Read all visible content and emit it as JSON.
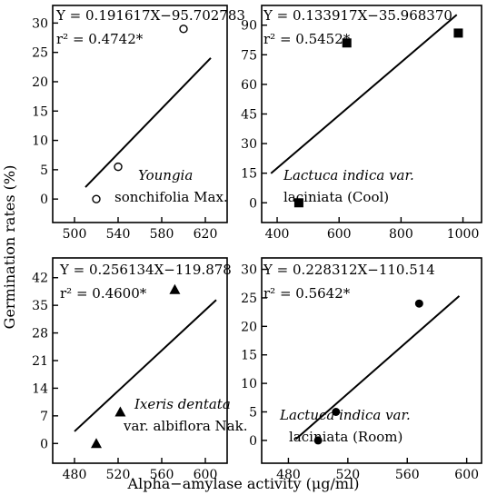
{
  "figure": {
    "ylabel": "Germination rates (%)",
    "xlabel": "Alpha−amylase activity (μg/ml)"
  },
  "chart_data": [
    {
      "type": "scatter",
      "marker": "circle-open",
      "equation": "Y = 0.191617X−95.702783",
      "r2": "r² = 0.4742*",
      "species_line1": "Youngia",
      "species_line2": "sonchifolia Max.",
      "xlim": [
        480,
        640
      ],
      "ylim": [
        -4,
        33
      ],
      "xticks": [
        500,
        540,
        580,
        620
      ],
      "yticks": [
        0,
        5,
        10,
        15,
        20,
        25,
        30
      ],
      "points": [
        [
          520,
          0
        ],
        [
          540,
          5.5
        ],
        [
          600,
          29
        ]
      ],
      "fit": {
        "slope": 0.191617,
        "intercept": -95.702783,
        "x_from": 510,
        "x_to": 625
      }
    },
    {
      "type": "scatter",
      "marker": "square-filled",
      "equation": "Y = 0.133917X−35.968370",
      "r2": "r² = 0.5452*",
      "species_line1": "Lactuca indica var.",
      "species_line2": "laciniata (Cool)",
      "xlim": [
        350,
        1060
      ],
      "ylim": [
        -10,
        100
      ],
      "xticks": [
        400,
        600,
        800,
        1000
      ],
      "yticks": [
        0,
        15,
        30,
        45,
        60,
        75,
        90
      ],
      "points": [
        [
          470,
          0
        ],
        [
          625,
          81
        ],
        [
          985,
          86
        ]
      ],
      "fit": {
        "slope": 0.133917,
        "intercept": -35.96837,
        "x_from": 380,
        "x_to": 980
      }
    },
    {
      "type": "scatter",
      "marker": "triangle-filled",
      "equation": "Y = 0.256134X−119.878",
      "r2": "r² = 0.4600*",
      "species_line1": "Ixeris dentata",
      "species_line2": "var. albiflora Nak.",
      "xlim": [
        460,
        620
      ],
      "ylim": [
        -5,
        47
      ],
      "xticks": [
        480,
        520,
        560,
        600
      ],
      "yticks": [
        0,
        7,
        14,
        21,
        28,
        35,
        42
      ],
      "points": [
        [
          500,
          0
        ],
        [
          522,
          8
        ],
        [
          572,
          39
        ]
      ],
      "fit": {
        "slope": 0.256134,
        "intercept": -119.878,
        "x_from": 480,
        "x_to": 610
      }
    },
    {
      "type": "scatter",
      "marker": "circle-filled",
      "equation": "Y = 0.228312X−110.514",
      "r2": "r² = 0.5642*",
      "species_line1": "Lactuca indica var.",
      "species_line2": "laciniata (Room)",
      "xlim": [
        462,
        610
      ],
      "ylim": [
        -4,
        32
      ],
      "xticks": [
        480,
        520,
        560,
        600
      ],
      "yticks": [
        0,
        5,
        10,
        15,
        20,
        25,
        30
      ],
      "points": [
        [
          500,
          0
        ],
        [
          512,
          5
        ],
        [
          568,
          24
        ]
      ],
      "fit": {
        "slope": 0.228312,
        "intercept": -110.514,
        "x_from": 485,
        "x_to": 595
      }
    }
  ]
}
